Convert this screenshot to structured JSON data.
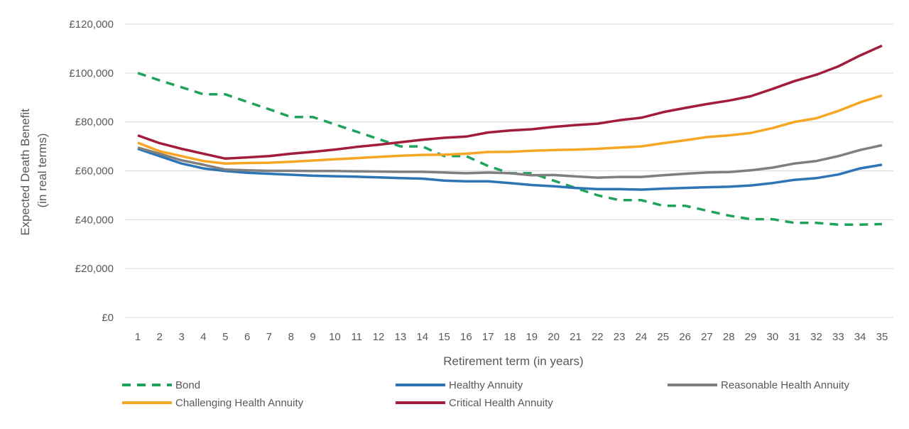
{
  "chart_data": {
    "type": "line",
    "title": "",
    "xlabel": "Retirement term (in years)",
    "ylabel_lines": [
      "Expected Death Benefit",
      "(in real terms)"
    ],
    "x": [
      1,
      2,
      3,
      4,
      5,
      6,
      7,
      8,
      9,
      10,
      11,
      12,
      13,
      14,
      15,
      16,
      17,
      18,
      19,
      20,
      21,
      22,
      23,
      24,
      25,
      26,
      27,
      28,
      29,
      30,
      31,
      32,
      33,
      34,
      35
    ],
    "ylim": [
      0,
      120000
    ],
    "yticks": [
      0,
      20000,
      40000,
      60000,
      80000,
      100000,
      120000
    ],
    "ytick_labels": [
      "£0",
      "£20,000",
      "£40,000",
      "£60,000",
      "£80,000",
      "£100,000",
      "£120,000"
    ],
    "grid": "horizontal",
    "legend_position": "bottom",
    "series": [
      {
        "name": "Bond",
        "color": "#1fa35c",
        "dash": true,
        "values": [
          100000,
          97000,
          94200,
          91300,
          91300,
          88200,
          85200,
          82000,
          82000,
          79000,
          76000,
          73000,
          70000,
          70000,
          66000,
          66000,
          62000,
          59000,
          59000,
          56000,
          53000,
          50000,
          48000,
          48000,
          45700,
          45700,
          43700,
          41700,
          40200,
          40200,
          38700,
          38700,
          38000,
          38000,
          38200
        ]
      },
      {
        "name": "Healthy Annuity",
        "color": "#2e75b6",
        "dash": false,
        "values": [
          69000,
          66000,
          63000,
          61000,
          59900,
          59200,
          58800,
          58400,
          58000,
          57800,
          57600,
          57300,
          57000,
          56800,
          56000,
          55700,
          55700,
          55000,
          54200,
          53700,
          53000,
          52500,
          52500,
          52300,
          52700,
          53000,
          53300,
          53500,
          54000,
          55000,
          56300,
          57000,
          58500,
          61000,
          62500
        ]
      },
      {
        "name": "Reasonable Health Annuity",
        "color": "#7f7f7f",
        "dash": false,
        "values": [
          69500,
          67000,
          64300,
          62500,
          60500,
          60200,
          60000,
          60000,
          59900,
          59900,
          59800,
          59700,
          59600,
          59600,
          59300,
          59000,
          59300,
          59000,
          58200,
          58300,
          57700,
          57200,
          57500,
          57500,
          58200,
          58800,
          59300,
          59500,
          60200,
          61300,
          63000,
          64000,
          66000,
          68500,
          70500
        ]
      },
      {
        "name": "Challenging Health Annuity",
        "color": "#f5a623",
        "dash": false,
        "values": [
          71500,
          68000,
          66000,
          64000,
          63000,
          63200,
          63300,
          63700,
          64200,
          64700,
          65200,
          65700,
          66200,
          66500,
          66600,
          67000,
          67700,
          67800,
          68200,
          68500,
          68700,
          69000,
          69500,
          70000,
          71300,
          72500,
          73800,
          74500,
          75500,
          77500,
          80000,
          81500,
          84500,
          88000,
          90800
        ]
      },
      {
        "name": "Critical Health Annuity",
        "color": "#a21d3c",
        "dash": false,
        "values": [
          74500,
          71300,
          69000,
          67000,
          65000,
          65500,
          66000,
          67000,
          67800,
          68700,
          69800,
          70700,
          71700,
          72700,
          73500,
          74000,
          75700,
          76500,
          77000,
          78000,
          78700,
          79300,
          80700,
          81700,
          84000,
          85700,
          87300,
          88700,
          90500,
          93500,
          96700,
          99300,
          102700,
          107200,
          111200
        ]
      }
    ]
  }
}
